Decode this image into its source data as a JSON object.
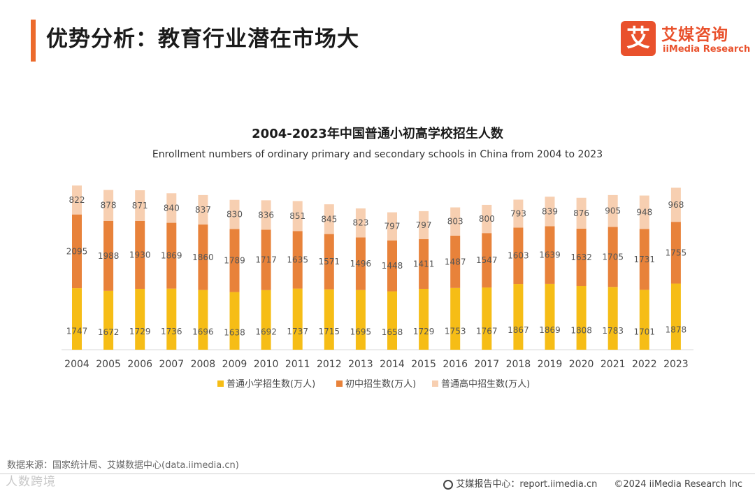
{
  "header": {
    "title": "优势分析：教育行业潜在市场大"
  },
  "logo": {
    "mark": "艾",
    "name_cn": "艾媒咨询",
    "name_en": "iiMedia Research"
  },
  "colors": {
    "accent": "#ec6a2c",
    "primary": "#f6bd16",
    "junior": "#e8823a",
    "senior": "#f7cfb1",
    "brand": "#e9512c"
  },
  "chart_data": {
    "type": "bar",
    "stacked": true,
    "title": "2004-2023年中国普通小初高学校招生人数",
    "subtitle": "Enrollment numbers of ordinary primary and secondary schools in China from 2004 to 2023",
    "categories": [
      "2004",
      "2005",
      "2006",
      "2007",
      "2008",
      "2009",
      "2010",
      "2011",
      "2012",
      "2013",
      "2014",
      "2015",
      "2016",
      "2017",
      "2018",
      "2019",
      "2020",
      "2021",
      "2022",
      "2023"
    ],
    "series": [
      {
        "name": "普通小学招生数(万人)",
        "values": [
          1747,
          1672,
          1729,
          1736,
          1696,
          1638,
          1692,
          1737,
          1715,
          1695,
          1658,
          1729,
          1753,
          1767,
          1867,
          1869,
          1808,
          1783,
          1701,
          1878
        ]
      },
      {
        "name": "初中招生数(万人)",
        "values": [
          2095,
          1988,
          1930,
          1869,
          1860,
          1789,
          1717,
          1635,
          1571,
          1496,
          1448,
          1411,
          1487,
          1547,
          1603,
          1639,
          1632,
          1705,
          1731,
          1755
        ]
      },
      {
        "name": "普通高中招生数(万人)",
        "values": [
          822,
          878,
          871,
          840,
          837,
          830,
          836,
          851,
          845,
          823,
          797,
          797,
          803,
          800,
          793,
          839,
          876,
          905,
          948,
          968
        ]
      }
    ],
    "legend_position": "bottom",
    "grid": false
  },
  "source": "数据来源：国家统计局、艾媒数据中心(data.iimedia.cn)",
  "watermark": "人数跨境",
  "footer": {
    "report_center": "艾媒报告中心：report.iimedia.cn",
    "copyright": "©2024  iiMedia Research  Inc"
  }
}
